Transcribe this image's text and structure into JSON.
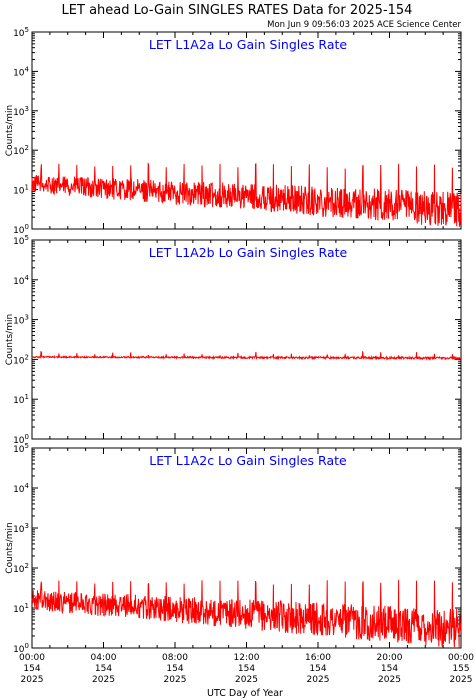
{
  "header": {
    "title": "LET ahead Lo-Gain SINGLES RATES Data for 2025-154",
    "timestamp": "Mon Jun  9 09:56:03 2025 ACE Science Center"
  },
  "colors": {
    "series": "#ff0000",
    "panel_title": "#0000ff",
    "axes": "#000000"
  },
  "chart_data": [
    {
      "type": "line",
      "title": "LET L1A2a Lo Gain Singles Rate",
      "ylabel": "Counts/min",
      "yscale": "log",
      "ylim": [
        1,
        100000
      ],
      "xlim": [
        0,
        24
      ],
      "baseline": {
        "start": 14,
        "end": 3,
        "noise": 0.23
      },
      "spikes": {
        "period_hours": 1.0,
        "offset_hours": 0.5,
        "value": 40
      }
    },
    {
      "type": "line",
      "title": "LET L1A2b Lo Gain Singles Rate",
      "ylabel": "Counts/min",
      "yscale": "log",
      "ylim": [
        1,
        100000
      ],
      "xlim": [
        0,
        24
      ],
      "baseline": {
        "start": 115,
        "end": 108,
        "noise": 0.015
      },
      "spikes": {
        "period_hours": 1.0,
        "offset_hours": 0.5,
        "value": 145
      }
    },
    {
      "type": "line",
      "title": "LET L1A2c Lo Gain Singles Rate",
      "ylabel": "Counts/min",
      "yscale": "log",
      "ylim": [
        1,
        100000
      ],
      "xlim": [
        0,
        24
      ],
      "baseline": {
        "start": 16,
        "end": 3,
        "noise": 0.25
      },
      "spikes": {
        "period_hours": 1.0,
        "offset_hours": 0.5,
        "value": 45
      }
    }
  ],
  "y_ticks": [
    {
      "value": 1,
      "base": "10",
      "exp": "0"
    },
    {
      "value": 10,
      "base": "10",
      "exp": "1"
    },
    {
      "value": 100,
      "base": "10",
      "exp": "2"
    },
    {
      "value": 1000,
      "base": "10",
      "exp": "3"
    },
    {
      "value": 10000,
      "base": "10",
      "exp": "4"
    },
    {
      "value": 100000,
      "base": "10",
      "exp": "5"
    }
  ],
  "x_ticks": [
    {
      "hour": 0,
      "time": "00:00",
      "doy": "154",
      "year": "2025"
    },
    {
      "hour": 4,
      "time": "04:00",
      "doy": "154",
      "year": "2025"
    },
    {
      "hour": 8,
      "time": "08:00",
      "doy": "154",
      "year": "2025"
    },
    {
      "hour": 12,
      "time": "12:00",
      "doy": "154",
      "year": "2025"
    },
    {
      "hour": 16,
      "time": "16:00",
      "doy": "154",
      "year": "2025"
    },
    {
      "hour": 20,
      "time": "20:00",
      "doy": "154",
      "year": "2025"
    },
    {
      "hour": 24,
      "time": "00:00",
      "doy": "155",
      "year": "2025"
    }
  ],
  "xlabel": "UTC Day of Year"
}
